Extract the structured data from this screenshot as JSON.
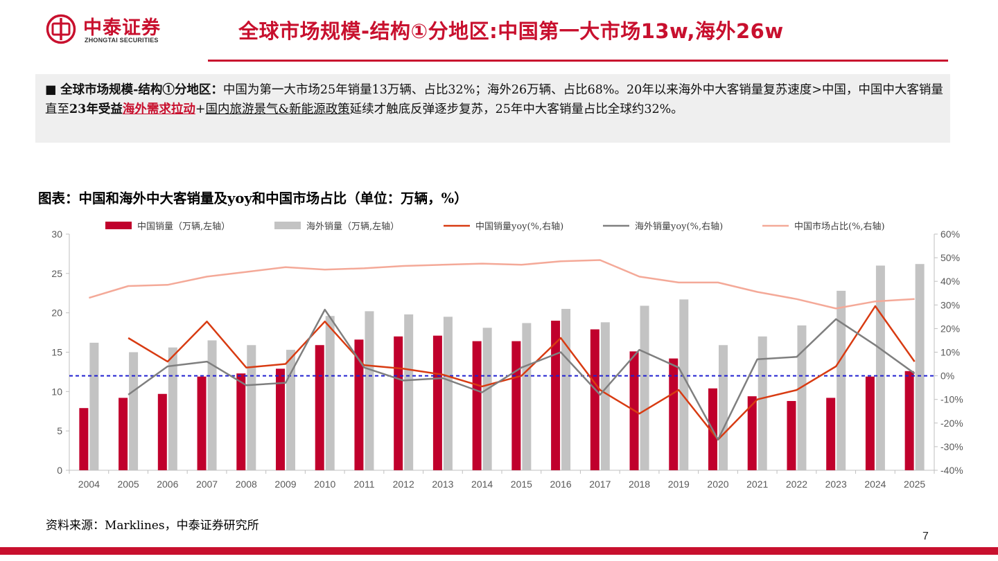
{
  "header": {
    "logo_cn": "中泰证券",
    "logo_en": "ZHONGTAI SECURITIES",
    "title": "全球市场规模-结构①分地区:中国第一大市场13w,海外26w"
  },
  "summary": {
    "bullet": "■",
    "lead": "全球市场规模-结构①分地区：",
    "text1": "中国为第一大市场25年销量13万辆、占比32%；海外26万辆、占比68%。20年以来海外中大客销量复苏速度>中国，中国中大客销量直至",
    "bold1": "23年受益",
    "red1": "海外需求拉动",
    "plus": "+",
    "ul1": "国内旅游景气&新能源政策",
    "text2": "延续才触底反弹逐步复苏，25年中大客销量占比全球约32%。"
  },
  "chart_title": "图表：中国和海外中大客销量及yoy和中国市场占比（单位：万辆，%）",
  "source": "资料来源：Marklines，中泰证券研究所",
  "page_number": "7",
  "colors": {
    "brand": "#c8102e",
    "china_bar": "#c0002c",
    "overseas_bar": "#c3c3c3",
    "china_yoy": "#d83b12",
    "overseas_yoy": "#7f7f7f",
    "china_share": "#f4a998",
    "zero_line": "#1f1fd0"
  },
  "chart_data": {
    "type": "bar",
    "categories": [
      "2004",
      "2005",
      "2006",
      "2007",
      "2008",
      "2009",
      "2010",
      "2011",
      "2012",
      "2013",
      "2014",
      "2015",
      "2016",
      "2017",
      "2018",
      "2019",
      "2020",
      "2021",
      "2022",
      "2023",
      "2024",
      "2025"
    ],
    "left_axis": {
      "min": 0,
      "max": 30,
      "ticks": [
        "0",
        "5",
        "10",
        "15",
        "20",
        "25",
        "30"
      ]
    },
    "right_axis": {
      "min": -40,
      "max": 60,
      "ticks": [
        "-40%",
        "-30%",
        "-20%",
        "-10%",
        "0%",
        "10%",
        "20%",
        "30%",
        "40%",
        "50%",
        "60%"
      ]
    },
    "legend_position": "top",
    "series": [
      {
        "name": "中国销量（万辆,左轴）",
        "kind": "bar",
        "axis": "left",
        "values": [
          7.9,
          9.2,
          9.7,
          11.9,
          12.3,
          12.9,
          15.9,
          16.6,
          17.0,
          17.1,
          16.4,
          16.4,
          19.0,
          17.9,
          15.1,
          14.2,
          10.4,
          9.4,
          8.8,
          9.2,
          11.9,
          12.6
        ]
      },
      {
        "name": "海外销量（万辆,左轴）",
        "kind": "bar",
        "axis": "left",
        "values": [
          16.2,
          15.0,
          15.6,
          16.5,
          15.9,
          15.3,
          19.6,
          20.2,
          19.8,
          19.5,
          18.1,
          18.7,
          20.5,
          18.8,
          20.9,
          21.7,
          15.9,
          17.0,
          18.4,
          22.8,
          26.0,
          26.2
        ]
      },
      {
        "name": "中国销量yoy(%,右轴)",
        "kind": "line",
        "axis": "right",
        "values": [
          null,
          16,
          6,
          23,
          3.5,
          5,
          23,
          4.5,
          3,
          0.5,
          -4.5,
          0,
          16,
          -6,
          -16,
          -6,
          -27,
          -10,
          -6,
          4,
          29.5,
          6
        ]
      },
      {
        "name": "海外销量yoy(%,右轴)",
        "kind": "line",
        "axis": "right",
        "values": [
          null,
          -8,
          4,
          6,
          -4,
          -3,
          28,
          3.5,
          -2,
          -1,
          -7,
          3.5,
          10,
          -8,
          11,
          3.5,
          -27,
          7,
          8,
          24,
          13,
          1
        ]
      },
      {
        "name": "中国市场占比(%,右轴)",
        "kind": "line",
        "axis": "right",
        "values": [
          33,
          38,
          38.5,
          42,
          44,
          46,
          45,
          45.5,
          46.5,
          47,
          47.5,
          47,
          48.5,
          49,
          42,
          39.5,
          39.5,
          35.5,
          32.5,
          28.5,
          31.5,
          32.5
        ]
      }
    ]
  }
}
